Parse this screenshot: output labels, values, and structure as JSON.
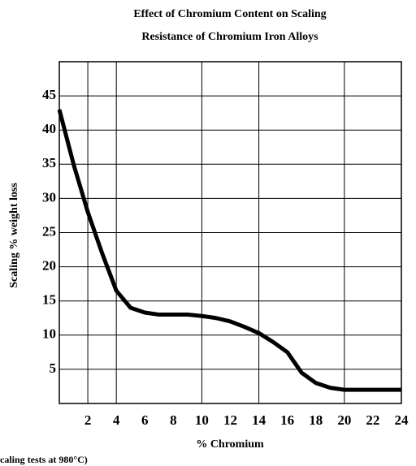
{
  "chart_data": {
    "type": "line",
    "title": [
      "Effect of Chromium Content on Scaling",
      "Resistance of Chromium Iron Alloys"
    ],
    "x_label": "% Chromium",
    "y_label": "Scaling   % weight loss",
    "note": "caling tests at 980°C)",
    "x": [
      0,
      1,
      2,
      3,
      4,
      5,
      6,
      7,
      8,
      9,
      10,
      11,
      12,
      13,
      14,
      15,
      16,
      17,
      18,
      19,
      20,
      21,
      22,
      23,
      24
    ],
    "series": [
      {
        "name": "Scaling",
        "color": "#000000",
        "values": [
          43,
          35,
          28,
          22,
          16.5,
          14,
          13.3,
          13,
          13,
          13,
          12.8,
          12.5,
          12,
          11.2,
          10.3,
          9,
          7.5,
          4.5,
          3,
          2.3,
          2,
          2,
          2,
          2,
          2
        ]
      }
    ],
    "xlim": [
      0,
      24
    ],
    "xticks": [
      2,
      4,
      6,
      8,
      10,
      12,
      14,
      16,
      18,
      20,
      22,
      24
    ],
    "ylim": [
      0,
      50
    ],
    "yticks": [
      5,
      10,
      15,
      20,
      25,
      30,
      35,
      40,
      45
    ],
    "xgrid": [
      2,
      4,
      10,
      14,
      20
    ],
    "grid": true
  }
}
